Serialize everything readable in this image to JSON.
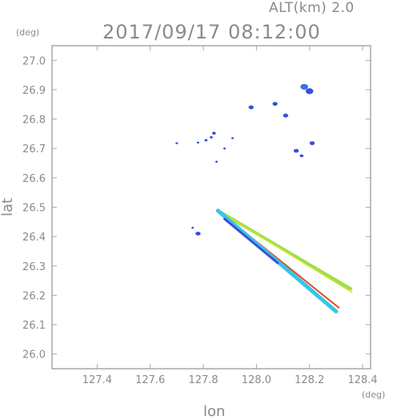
{
  "header": {
    "alt_label": "ALT(km)  2.0",
    "datetime": "2017/09/17  08:12:00"
  },
  "axes": {
    "y_unit": "(deg)",
    "x_unit": "(deg)",
    "x_label": "lon",
    "y_label": "lat"
  },
  "colors": {
    "frame": "#a8a8a8",
    "text": "#8a8a8a",
    "blue_echo": "#3a4fd8",
    "cyan_echo": "#35c6e8",
    "green_echo": "#9be04a",
    "yellow_echo": "#d8e02e",
    "red_echo": "#e04a1f"
  },
  "chart_data": {
    "type": "scatter",
    "title": "2017/09/17  08:12:00",
    "subtitle": "ALT(km)  2.0",
    "xlabel": "lon",
    "ylabel": "lat",
    "xlim": [
      127.23,
      128.43
    ],
    "ylim": [
      25.95,
      27.05
    ],
    "xticks": [
      127.4,
      127.6,
      127.8,
      128.0,
      128.2,
      128.4
    ],
    "yticks": [
      26.0,
      26.1,
      26.2,
      26.3,
      26.4,
      26.5,
      26.6,
      26.7,
      26.8,
      26.9,
      27.0
    ],
    "x_tick_labels": [
      "127.4",
      "127.6",
      "127.8",
      "128.0",
      "128.2",
      "128.4"
    ],
    "y_tick_labels": [
      "26.0",
      "26.1",
      "26.2",
      "26.3",
      "26.4",
      "26.5",
      "26.6",
      "26.7",
      "26.8",
      "26.9",
      "27.0"
    ],
    "grid": false,
    "echo_clusters": [
      {
        "lon": 128.18,
        "lat": 26.91,
        "color": "#3a6fe0",
        "size": 3
      },
      {
        "lon": 128.2,
        "lat": 26.895,
        "color": "#3a4fd8",
        "size": 3
      },
      {
        "lon": 128.07,
        "lat": 26.852,
        "color": "#3a4fd8",
        "size": 2
      },
      {
        "lon": 127.98,
        "lat": 26.84,
        "color": "#3a4fd8",
        "size": 2
      },
      {
        "lon": 128.11,
        "lat": 26.812,
        "color": "#3a4fd8",
        "size": 2
      },
      {
        "lon": 128.21,
        "lat": 26.718,
        "color": "#3a4fd8",
        "size": 2
      },
      {
        "lon": 128.15,
        "lat": 26.692,
        "color": "#3a4fd8",
        "size": 2
      },
      {
        "lon": 128.17,
        "lat": 26.675,
        "color": "#3a4fd8",
        "size": 1.5
      },
      {
        "lon": 127.84,
        "lat": 26.752,
        "color": "#3a4fd8",
        "size": 1.5
      },
      {
        "lon": 127.83,
        "lat": 26.738,
        "color": "#3a4fd8",
        "size": 1.2
      },
      {
        "lon": 127.81,
        "lat": 26.728,
        "color": "#3a4fd8",
        "size": 1.2
      },
      {
        "lon": 127.78,
        "lat": 26.72,
        "color": "#3a4fd8",
        "size": 1
      },
      {
        "lon": 127.91,
        "lat": 26.735,
        "color": "#3a4fd8",
        "size": 1
      },
      {
        "lon": 127.7,
        "lat": 26.718,
        "color": "#3a4fd8",
        "size": 1
      },
      {
        "lon": 127.88,
        "lat": 26.7,
        "color": "#3a4fd8",
        "size": 1
      },
      {
        "lon": 127.85,
        "lat": 26.655,
        "color": "#3a4fd8",
        "size": 1
      },
      {
        "lon": 127.78,
        "lat": 26.41,
        "color": "#3a4fd8",
        "size": 2
      },
      {
        "lon": 127.76,
        "lat": 26.43,
        "color": "#3a4fd8",
        "size": 1
      }
    ],
    "rays": [
      {
        "from": [
          127.855,
          26.488
        ],
        "to": [
          128.355,
          26.222
        ],
        "color": "#9be04a",
        "width": 4
      },
      {
        "from": [
          127.855,
          26.488
        ],
        "to": [
          128.36,
          26.21
        ],
        "color": "#d8e02e",
        "width": 1.5
      },
      {
        "from": [
          127.855,
          26.488
        ],
        "to": [
          128.31,
          26.158
        ],
        "color": "#e04a1f",
        "width": 2
      },
      {
        "from": [
          127.855,
          26.488
        ],
        "to": [
          128.3,
          26.145
        ],
        "color": "#35c6e8",
        "width": 5
      },
      {
        "from": [
          127.88,
          26.46
        ],
        "to": [
          128.08,
          26.31
        ],
        "color": "#3a4fd8",
        "width": 3
      }
    ]
  }
}
